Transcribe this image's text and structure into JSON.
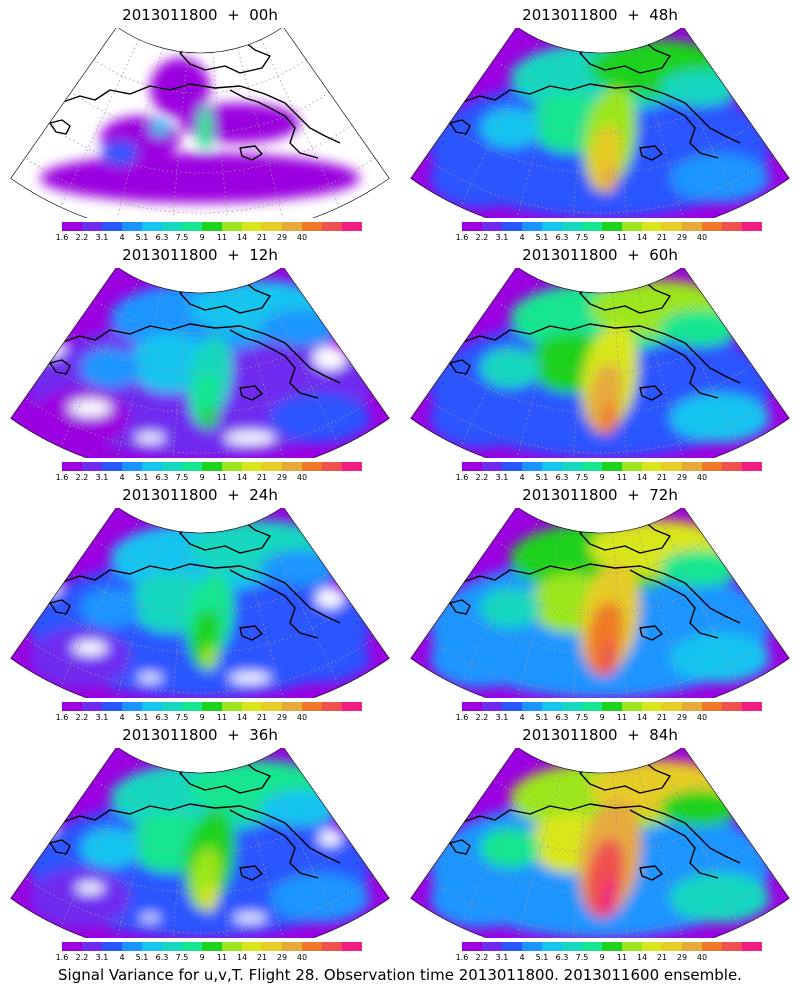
{
  "caption": "Signal Variance for u,v,T. Flight 28. Observation time 2013011800. 2013011600 ensemble.",
  "colorbar": {
    "colors": [
      "#9b00e0",
      "#6f2cf0",
      "#2b55ff",
      "#1a95ff",
      "#14c4f0",
      "#14d8c0",
      "#14e690",
      "#1ed21e",
      "#9be61e",
      "#d9e61e",
      "#e6cc28",
      "#e6aa3c",
      "#f07828",
      "#f05050",
      "#f01e82"
    ],
    "labels": [
      "1.6",
      "2.2",
      "3.1",
      "4",
      "5.1",
      "6.3",
      "7.5",
      "9",
      "11",
      "14",
      "21",
      "29",
      "40"
    ]
  },
  "panels": [
    {
      "title": "2013011800  +  00h",
      "lead": 0
    },
    {
      "title": "2013011800  +  48h",
      "lead": 48
    },
    {
      "title": "2013011800  +  12h",
      "lead": 12
    },
    {
      "title": "2013011800  +  60h",
      "lead": 60
    },
    {
      "title": "2013011800  +  24h",
      "lead": 24
    },
    {
      "title": "2013011800  +  72h",
      "lead": 72
    },
    {
      "title": "2013011800  +  36h",
      "lead": 36
    },
    {
      "title": "2013011800  +  84h",
      "lead": 84
    }
  ]
}
